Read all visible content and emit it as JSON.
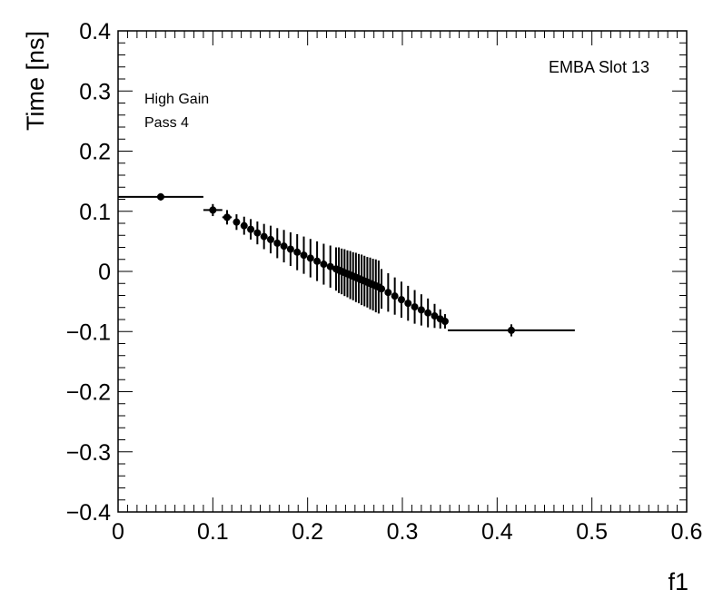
{
  "chart_data": {
    "type": "scatter",
    "xlabel": "f1",
    "ylabel": "Time [ns]",
    "xlim": [
      0,
      0.6
    ],
    "ylim": [
      -0.4,
      0.4
    ],
    "x_ticks": [
      0,
      0.1,
      0.2,
      0.3,
      0.4,
      0.5,
      0.6
    ],
    "y_ticks": [
      -0.4,
      -0.3,
      -0.2,
      -0.1,
      0,
      0.1,
      0.2,
      0.3,
      0.4
    ],
    "x_tick_labels": [
      "0",
      "0.1",
      "0.2",
      "0.3",
      "0.4",
      "0.5",
      "0.6"
    ],
    "y_tick_labels": [
      "−0.4",
      "−0.3",
      "−0.2",
      "−0.1",
      "0",
      "0.1",
      "0.2",
      "0.3",
      "0.4"
    ],
    "grid": false,
    "annotations": [
      {
        "text": "EMBA Slot 13",
        "placement": "top-right"
      },
      {
        "text": "High Gain",
        "placement": "top-left"
      },
      {
        "text": "Pass 4",
        "placement": "top-left"
      }
    ],
    "series": [
      {
        "points": [
          {
            "x": 0.045,
            "y": 0.124,
            "xerr": 0.045,
            "yerr": 0.006
          },
          {
            "x": 0.1,
            "y": 0.102,
            "xerr": 0.01,
            "yerr": 0.01
          },
          {
            "x": 0.115,
            "y": 0.09,
            "xerr": 0.005,
            "yerr": 0.012
          },
          {
            "x": 0.125,
            "y": 0.082,
            "xerr": 0.003,
            "yerr": 0.013
          },
          {
            "x": 0.133,
            "y": 0.076,
            "xerr": 0.002,
            "yerr": 0.015
          },
          {
            "x": 0.14,
            "y": 0.07,
            "xerr": 0.002,
            "yerr": 0.017
          },
          {
            "x": 0.147,
            "y": 0.064,
            "xerr": 0.002,
            "yerr": 0.019
          },
          {
            "x": 0.154,
            "y": 0.058,
            "xerr": 0.002,
            "yerr": 0.021
          },
          {
            "x": 0.161,
            "y": 0.053,
            "xerr": 0.002,
            "yerr": 0.023
          },
          {
            "x": 0.168,
            "y": 0.047,
            "xerr": 0.002,
            "yerr": 0.025
          },
          {
            "x": 0.175,
            "y": 0.042,
            "xerr": 0.002,
            "yerr": 0.027
          },
          {
            "x": 0.182,
            "y": 0.037,
            "xerr": 0.002,
            "yerr": 0.028
          },
          {
            "x": 0.189,
            "y": 0.032,
            "xerr": 0.002,
            "yerr": 0.03
          },
          {
            "x": 0.196,
            "y": 0.027,
            "xerr": 0.002,
            "yerr": 0.031
          },
          {
            "x": 0.203,
            "y": 0.022,
            "xerr": 0.002,
            "yerr": 0.032
          },
          {
            "x": 0.21,
            "y": 0.017,
            "xerr": 0.002,
            "yerr": 0.033
          },
          {
            "x": 0.217,
            "y": 0.012,
            "xerr": 0.002,
            "yerr": 0.034
          },
          {
            "x": 0.224,
            "y": 0.008,
            "xerr": 0.002,
            "yerr": 0.035
          },
          {
            "x": 0.23,
            "y": 0.004,
            "xerr": 0.001,
            "yerr": 0.036
          },
          {
            "x": 0.233,
            "y": 0.002,
            "xerr": 0.001,
            "yerr": 0.038
          },
          {
            "x": 0.236,
            "y": 0.0,
            "xerr": 0.001,
            "yerr": 0.038
          },
          {
            "x": 0.239,
            "y": -0.002,
            "xerr": 0.001,
            "yerr": 0.039
          },
          {
            "x": 0.242,
            "y": -0.004,
            "xerr": 0.001,
            "yerr": 0.039
          },
          {
            "x": 0.245,
            "y": -0.006,
            "xerr": 0.001,
            "yerr": 0.04
          },
          {
            "x": 0.248,
            "y": -0.008,
            "xerr": 0.001,
            "yerr": 0.04
          },
          {
            "x": 0.251,
            "y": -0.01,
            "xerr": 0.001,
            "yerr": 0.041
          },
          {
            "x": 0.254,
            "y": -0.012,
            "xerr": 0.001,
            "yerr": 0.041
          },
          {
            "x": 0.257,
            "y": -0.014,
            "xerr": 0.001,
            "yerr": 0.042
          },
          {
            "x": 0.26,
            "y": -0.016,
            "xerr": 0.001,
            "yerr": 0.042
          },
          {
            "x": 0.263,
            "y": -0.018,
            "xerr": 0.001,
            "yerr": 0.042
          },
          {
            "x": 0.266,
            "y": -0.02,
            "xerr": 0.001,
            "yerr": 0.043
          },
          {
            "x": 0.269,
            "y": -0.022,
            "xerr": 0.001,
            "yerr": 0.043
          },
          {
            "x": 0.272,
            "y": -0.024,
            "xerr": 0.001,
            "yerr": 0.044
          },
          {
            "x": 0.275,
            "y": -0.026,
            "xerr": 0.001,
            "yerr": 0.044
          },
          {
            "x": 0.278,
            "y": -0.029,
            "xerr": 0.002,
            "yerr": 0.033
          },
          {
            "x": 0.285,
            "y": -0.035,
            "xerr": 0.002,
            "yerr": 0.032
          },
          {
            "x": 0.292,
            "y": -0.041,
            "xerr": 0.002,
            "yerr": 0.031
          },
          {
            "x": 0.299,
            "y": -0.047,
            "xerr": 0.002,
            "yerr": 0.03
          },
          {
            "x": 0.306,
            "y": -0.053,
            "xerr": 0.002,
            "yerr": 0.029
          },
          {
            "x": 0.313,
            "y": -0.059,
            "xerr": 0.002,
            "yerr": 0.028
          },
          {
            "x": 0.32,
            "y": -0.064,
            "xerr": 0.002,
            "yerr": 0.026
          },
          {
            "x": 0.327,
            "y": -0.069,
            "xerr": 0.002,
            "yerr": 0.024
          },
          {
            "x": 0.334,
            "y": -0.074,
            "xerr": 0.002,
            "yerr": 0.02
          },
          {
            "x": 0.34,
            "y": -0.079,
            "xerr": 0.002,
            "yerr": 0.016
          },
          {
            "x": 0.345,
            "y": -0.083,
            "xerr": 0.003,
            "yerr": 0.012
          },
          {
            "x": 0.415,
            "y": -0.098,
            "xerr": 0.067,
            "yerr": 0.01
          }
        ]
      }
    ]
  }
}
